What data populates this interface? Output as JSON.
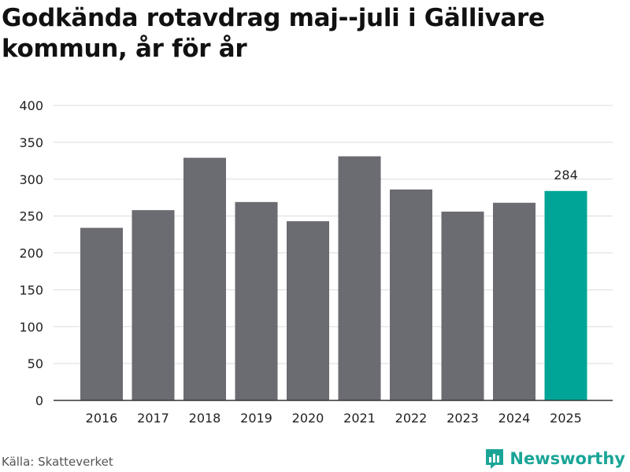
{
  "title": "Godkända rotavdrag maj--juli i Gällivare kommun, år för år",
  "source": "Källa: Skatteverket",
  "brand": {
    "name": "Newsworthy",
    "icon": "bar-chart-logo-icon"
  },
  "colors": {
    "bar": "#6b6b72",
    "highlight": "#00a598",
    "brand": "#1aa597"
  },
  "chart_data": {
    "type": "bar",
    "categories": [
      "2016",
      "2017",
      "2018",
      "2019",
      "2020",
      "2021",
      "2022",
      "2023",
      "2024",
      "2025"
    ],
    "values": [
      234,
      258,
      329,
      269,
      243,
      331,
      286,
      256,
      268,
      284
    ],
    "highlight_index": 9,
    "data_labels": [
      {
        "index": 9,
        "text": "284"
      }
    ],
    "ylim": [
      0,
      400
    ],
    "yticks": [
      0,
      50,
      100,
      150,
      200,
      250,
      300,
      350,
      400
    ],
    "grid": true,
    "xlabel": "",
    "ylabel": ""
  }
}
